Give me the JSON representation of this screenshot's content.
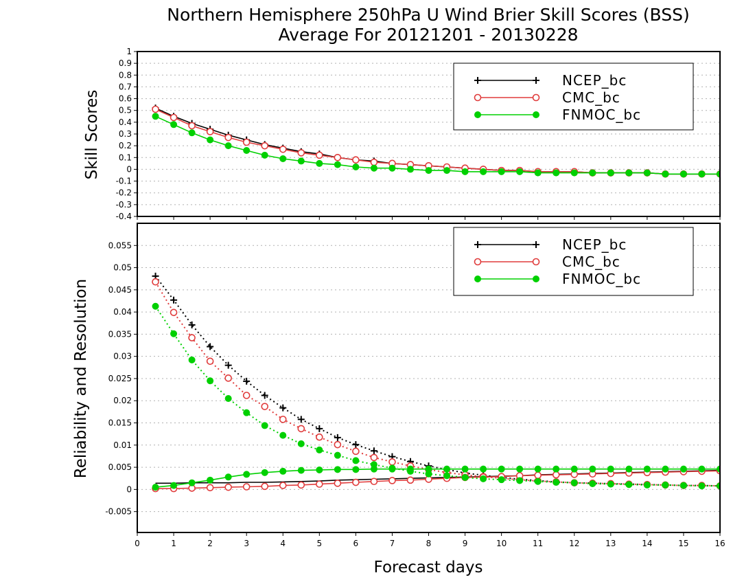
{
  "title_line1": "Northern Hemisphere 250hPa U Wind Brier Skill Scores (BSS)",
  "title_line2": "Average For 20121201 - 20130228",
  "xlabel": "Forecast days",
  "colors": {
    "NCEP_bc": "#000000",
    "CMC_bc": "#e03c3c",
    "FNMOC_bc": "#00d000"
  },
  "chart_data": [
    {
      "type": "line",
      "panel": "top",
      "ylabel": "Skill Scores",
      "xlim": [
        0,
        16
      ],
      "ylim": [
        -0.4,
        1
      ],
      "x_ticks": [
        0,
        1,
        2,
        3,
        4,
        5,
        6,
        7,
        8,
        9,
        10,
        11,
        12,
        13,
        14,
        15,
        16
      ],
      "y_ticks": [
        "-0.4",
        "-0.3",
        "-0.2",
        "-0.1",
        "0",
        "0.1",
        "0.2",
        "0.3",
        "0.4",
        "0.5",
        "0.6",
        "0.7",
        "0.8",
        "0.9",
        "1"
      ],
      "grid": true,
      "legend_position": "top-right",
      "x": [
        0.5,
        1,
        1.5,
        2,
        2.5,
        3,
        3.5,
        4,
        4.5,
        5,
        5.5,
        6,
        6.5,
        7,
        7.5,
        8,
        8.5,
        9,
        9.5,
        10,
        10.5,
        11,
        11.5,
        12,
        12.5,
        13,
        13.5,
        14,
        14.5,
        15,
        15.5,
        16
      ],
      "series": [
        {
          "name": "NCEP_bc",
          "marker": "plus",
          "line": "solid",
          "values": [
            0.52,
            0.45,
            0.39,
            0.34,
            0.29,
            0.25,
            0.21,
            0.18,
            0.15,
            0.13,
            0.1,
            0.08,
            0.07,
            0.05,
            0.04,
            0.03,
            0.02,
            0.01,
            0.0,
            -0.01,
            -0.01,
            -0.02,
            -0.02,
            -0.02,
            -0.03,
            -0.03,
            -0.03,
            -0.03,
            -0.04,
            -0.04,
            -0.04,
            -0.04
          ]
        },
        {
          "name": "CMC_bc",
          "marker": "open-circle",
          "line": "solid",
          "values": [
            0.51,
            0.44,
            0.37,
            0.32,
            0.27,
            0.23,
            0.2,
            0.17,
            0.14,
            0.12,
            0.1,
            0.08,
            0.06,
            0.05,
            0.04,
            0.03,
            0.02,
            0.01,
            0.0,
            -0.01,
            -0.01,
            -0.02,
            -0.02,
            -0.02,
            -0.03,
            -0.03,
            -0.03,
            -0.03,
            -0.04,
            -0.04,
            -0.04,
            -0.04
          ]
        },
        {
          "name": "FNMOC_bc",
          "marker": "filled-circle",
          "line": "solid",
          "values": [
            0.45,
            0.38,
            0.31,
            0.25,
            0.2,
            0.16,
            0.12,
            0.09,
            0.07,
            0.05,
            0.04,
            0.02,
            0.01,
            0.01,
            0.0,
            -0.01,
            -0.01,
            -0.02,
            -0.02,
            -0.02,
            -0.02,
            -0.03,
            -0.03,
            -0.03,
            -0.03,
            -0.03,
            -0.03,
            -0.03,
            -0.04,
            -0.04,
            -0.04,
            -0.04
          ]
        }
      ]
    },
    {
      "type": "line",
      "panel": "bottom",
      "ylabel": "Reliability and Resolution",
      "xlim": [
        0,
        16
      ],
      "ylim": [
        -0.0097,
        0.06
      ],
      "x_ticks": [
        0,
        1,
        2,
        3,
        4,
        5,
        6,
        7,
        8,
        9,
        10,
        11,
        12,
        13,
        14,
        15,
        16
      ],
      "y_ticks": [
        "-0.005",
        "0",
        "0.005",
        "0.01",
        "0.015",
        "0.02",
        "0.025",
        "0.03",
        "0.035",
        "0.04",
        "0.045",
        "0.05",
        "0.055"
      ],
      "grid": true,
      "legend_position": "top-right",
      "x": [
        0.5,
        1,
        1.5,
        2,
        2.5,
        3,
        3.5,
        4,
        4.5,
        5,
        5.5,
        6,
        6.5,
        7,
        7.5,
        8,
        8.5,
        9,
        9.5,
        10,
        10.5,
        11,
        11.5,
        12,
        12.5,
        13,
        13.5,
        14,
        14.5,
        15,
        15.5,
        16
      ],
      "series": [
        {
          "name": "NCEP_bc",
          "marker": "plus",
          "line": "dotted",
          "values": [
            0.0481,
            0.0427,
            0.0371,
            0.0322,
            0.028,
            0.0244,
            0.0212,
            0.0184,
            0.0158,
            0.0137,
            0.0117,
            0.0101,
            0.0087,
            0.0074,
            0.0063,
            0.0053,
            0.0045,
            0.0037,
            0.0032,
            0.0027,
            0.0023,
            0.002,
            0.0017,
            0.0015,
            0.0014,
            0.0013,
            0.0012,
            0.0011,
            0.001,
            0.0009,
            0.0009,
            0.0008
          ]
        },
        {
          "name": "NCEP_bc",
          "marker": "none",
          "line": "solid",
          "values": [
            0.0014,
            0.0014,
            0.0015,
            0.0015,
            0.0015,
            0.0016,
            0.0016,
            0.0017,
            0.0018,
            0.0019,
            0.0021,
            0.0022,
            0.0023,
            0.0024,
            0.0025,
            0.0026,
            0.0027,
            0.0028,
            0.0029,
            0.003,
            0.0031,
            0.0033,
            0.0034,
            0.0035,
            0.0036,
            0.0037,
            0.0038,
            0.0039,
            0.004,
            0.0041,
            0.0042,
            0.0043
          ]
        },
        {
          "name": "CMC_bc",
          "marker": "open-circle",
          "line": "dotted",
          "values": [
            0.0468,
            0.0399,
            0.0342,
            0.0289,
            0.0251,
            0.0212,
            0.0187,
            0.0158,
            0.0137,
            0.0118,
            0.0101,
            0.0086,
            0.0072,
            0.0062,
            0.0053,
            0.0045,
            0.0038,
            0.0033,
            0.0029,
            0.0025,
            0.0022,
            0.0019,
            0.0017,
            0.0015,
            0.0014,
            0.0013,
            0.0012,
            0.0011,
            0.001,
            0.0009,
            0.0009,
            0.0008
          ]
        },
        {
          "name": "CMC_bc",
          "marker": "open-circle",
          "line": "solid",
          "values": [
            0.0002,
            0.0002,
            0.0003,
            0.0004,
            0.0005,
            0.0006,
            0.0007,
            0.0009,
            0.001,
            0.0012,
            0.0014,
            0.0016,
            0.0018,
            0.002,
            0.0021,
            0.0023,
            0.0025,
            0.0027,
            0.0028,
            0.0029,
            0.0031,
            0.0032,
            0.0033,
            0.0034,
            0.0035,
            0.0036,
            0.0037,
            0.0038,
            0.0039,
            0.004,
            0.0041,
            0.0042
          ]
        },
        {
          "name": "FNMOC_bc",
          "marker": "filled-circle",
          "line": "dotted",
          "values": [
            0.0413,
            0.0351,
            0.0292,
            0.0245,
            0.0205,
            0.0173,
            0.0144,
            0.0122,
            0.0103,
            0.0089,
            0.0077,
            0.0065,
            0.0056,
            0.0048,
            0.0041,
            0.0035,
            0.0031,
            0.0027,
            0.0024,
            0.0022,
            0.002,
            0.0018,
            0.0016,
            0.0015,
            0.0013,
            0.0012,
            0.0011,
            0.001,
            0.001,
            0.0009,
            0.0008,
            0.0008
          ]
        },
        {
          "name": "FNMOC_bc",
          "marker": "filled-circle",
          "line": "solid",
          "values": [
            0.0005,
            0.0009,
            0.0015,
            0.0021,
            0.0028,
            0.0034,
            0.0038,
            0.0041,
            0.0043,
            0.0044,
            0.0045,
            0.0045,
            0.0046,
            0.0046,
            0.0046,
            0.0046,
            0.0046,
            0.0046,
            0.0046,
            0.0046,
            0.0046,
            0.0046,
            0.0046,
            0.0046,
            0.0046,
            0.0046,
            0.0046,
            0.0046,
            0.0046,
            0.0046,
            0.0046,
            0.0046
          ]
        }
      ]
    }
  ]
}
